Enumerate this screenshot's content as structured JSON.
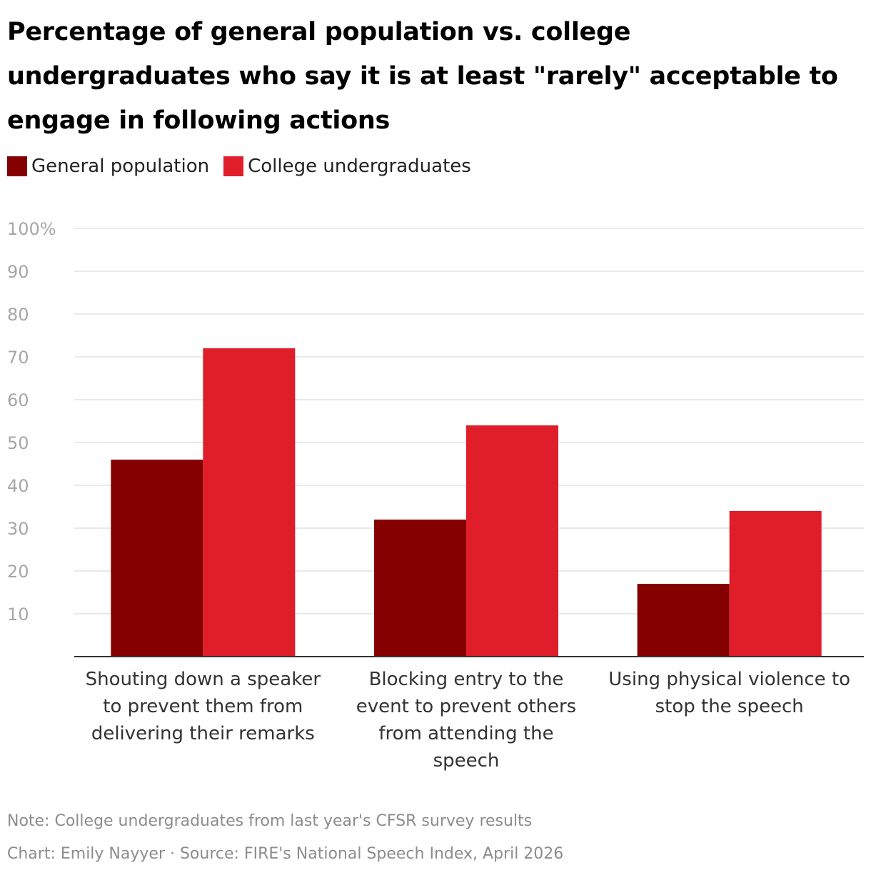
{
  "chart_data": {
    "type": "bar",
    "title": "Percentage of general population vs. college undergraduates who say it is at least \"rarely\" acceptable to engage in following actions",
    "categories": [
      "Shouting down a speaker to prevent them from delivering their remarks",
      "Blocking entry to the event to prevent others from attending the speech",
      "Using physical violence to stop the speech"
    ],
    "category_lines": [
      [
        "Shouting down a speaker",
        "to prevent them from",
        "delivering their remarks"
      ],
      [
        "Blocking entry to the",
        "event to prevent others",
        "from attending the",
        "speech"
      ],
      [
        "Using physical violence to",
        "stop the speech"
      ]
    ],
    "series": [
      {
        "name": "General population",
        "values": [
          46,
          32,
          17
        ],
        "color": "#850000"
      },
      {
        "name": "College undergraduates",
        "values": [
          72,
          54,
          34
        ],
        "color": "#e01e29"
      }
    ],
    "ylim": [
      0,
      100
    ],
    "yticks": [
      10,
      20,
      30,
      40,
      50,
      60,
      70,
      80,
      90,
      100
    ],
    "ytick_labels": [
      "10",
      "20",
      "30",
      "40",
      "50",
      "60",
      "70",
      "80",
      "90",
      "100%"
    ],
    "grid": true,
    "legend_position": "top-left",
    "xlabel": "",
    "ylabel": ""
  },
  "note": "Note: College undergraduates from last year's CFSR survey results",
  "credit": "Chart: Emily Nayyer · Source: FIRE's National Speech Index, April 2026"
}
